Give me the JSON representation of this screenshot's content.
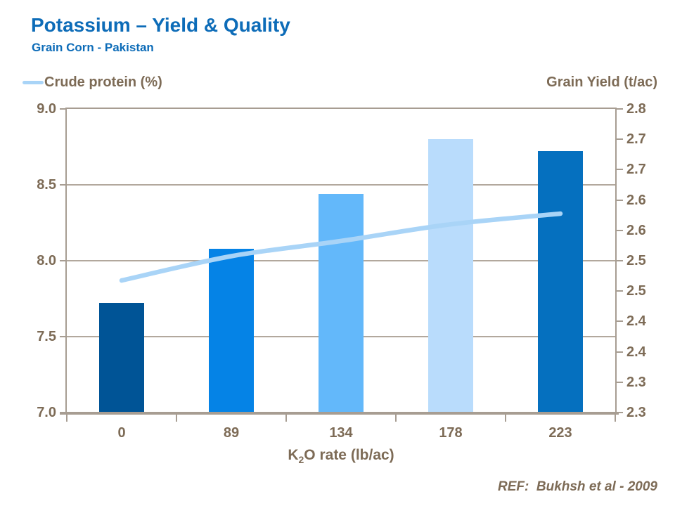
{
  "header": {
    "title": "Potassium – Yield & Quality",
    "subtitle": "Grain Corn - Pakistan",
    "title_color": "#0D6CB8"
  },
  "legend": {
    "label": "Crude protein (%)",
    "swatch_color": "#A9D4F7",
    "position": "top-left"
  },
  "footer": {
    "ref": "REF:  Bukhsh et al - 2009"
  },
  "chart_data": {
    "type": "bar+line",
    "title": "Potassium – Yield & Quality",
    "subtitle": "Grain Corn - Pakistan",
    "categories": [
      "0",
      "89",
      "134",
      "178",
      "223"
    ],
    "x_axis": {
      "label_text": "K2O rate (lb/ac)",
      "label_parts": {
        "base": "K",
        "sub": "2",
        "rest": "O rate (lb/ac)"
      }
    },
    "left_axis": {
      "title": "Crude protein (%)",
      "min": 7.0,
      "max": 9.0,
      "tick_labels": [
        "9.0",
        "8.5",
        "8.0",
        "7.5",
        "7.0"
      ]
    },
    "right_axis": {
      "title": "Grain Yield (t/ac)",
      "min": 2.3,
      "max": 2.8,
      "tick_labels": [
        "2.8",
        "2.7",
        "2.7",
        "2.6",
        "2.6",
        "2.5",
        "2.5",
        "2.4",
        "2.4",
        "2.3",
        "2.3"
      ]
    },
    "series": [
      {
        "name": "Grain Yield (t/ac)",
        "type": "bar",
        "axis": "right",
        "values": [
          2.48,
          2.57,
          2.66,
          2.75,
          2.73
        ],
        "bar_colors": [
          "#005496",
          "#0583E6",
          "#63B8FA",
          "#B9DCFC",
          "#0570BF"
        ]
      },
      {
        "name": "Crude protein (%)",
        "type": "line",
        "axis": "left",
        "values": [
          7.87,
          8.03,
          8.13,
          8.24,
          8.31
        ],
        "color": "#A9D4F7"
      }
    ],
    "grid": {
      "show": true,
      "color": "#B2A89D"
    },
    "axis_color": "#A79D92",
    "text_color": "#7D6B56",
    "legend_position": "top-left"
  }
}
